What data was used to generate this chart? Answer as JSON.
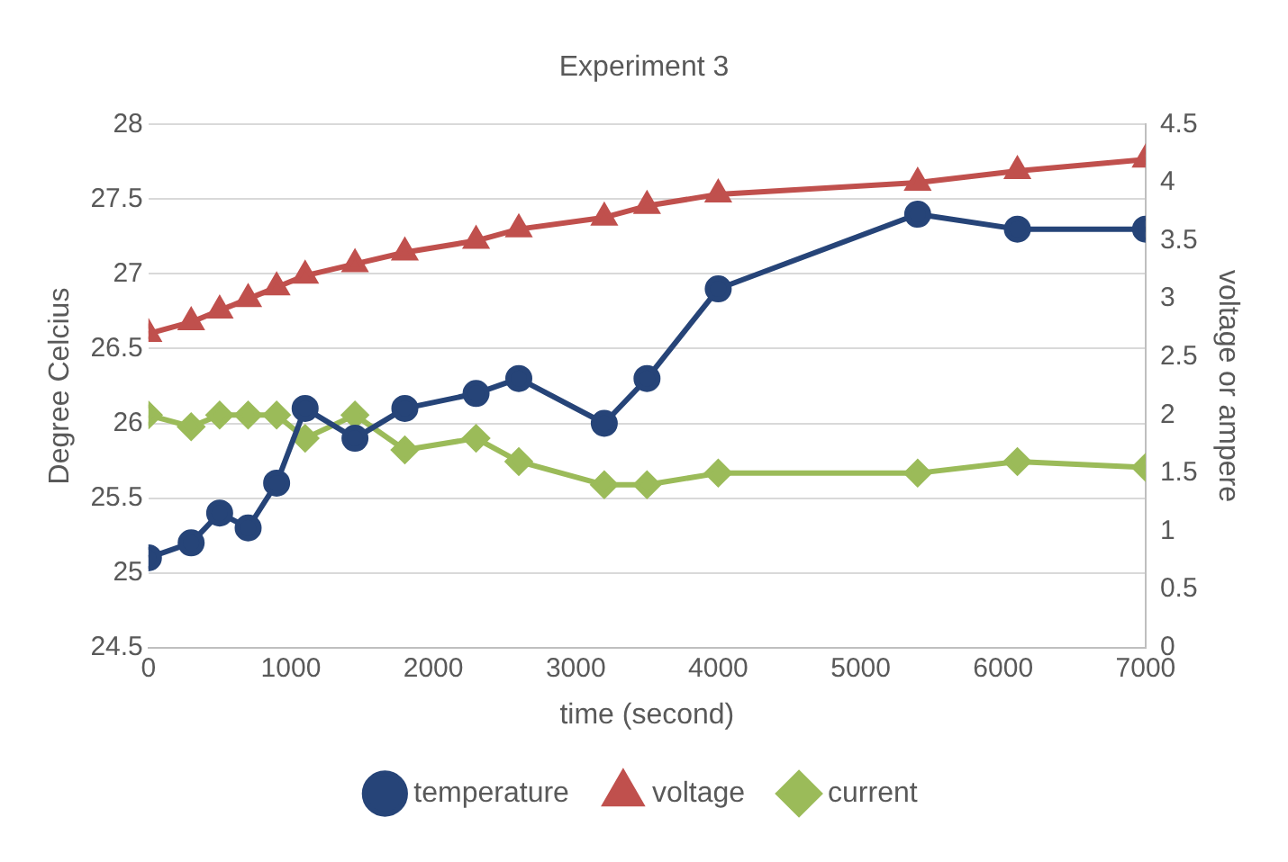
{
  "chart_data": {
    "type": "line",
    "title": "Experiment 3",
    "xlabel": "time (second)",
    "ylabel": "Degree Celcius",
    "y2label": "voltage or ampere",
    "x": [
      0,
      300,
      500,
      700,
      900,
      1100,
      1450,
      1800,
      2300,
      2600,
      3200,
      3500,
      4000,
      5400,
      6100,
      7000
    ],
    "series": [
      {
        "name": "temperature",
        "color": "#264478",
        "marker": "circle",
        "values": [
          25.1,
          25.2,
          25.4,
          25.3,
          25.6,
          26.1,
          25.9,
          26.1,
          26.2,
          26.3,
          26.0,
          26.3,
          26.9,
          27.4,
          27.3,
          27.3
        ]
      },
      {
        "name": "voltage",
        "color": "#c0504d",
        "marker": "triangle",
        "axis": "y2",
        "values": [
          2.7,
          2.8,
          2.9,
          3.0,
          3.1,
          3.2,
          3.3,
          3.4,
          3.5,
          3.6,
          3.7,
          3.8,
          3.9,
          4.0,
          4.1,
          4.2
        ]
      },
      {
        "name": "current",
        "color": "#9bbb59",
        "marker": "diamond",
        "axis": "y2",
        "values": [
          2.0,
          1.9,
          2.0,
          2.0,
          2.0,
          1.8,
          2.0,
          1.7,
          1.8,
          1.6,
          1.4,
          1.4,
          1.5,
          1.5,
          1.6,
          1.55
        ]
      }
    ],
    "xlim": [
      0,
      7000
    ],
    "xticks": [
      0,
      1000,
      2000,
      3000,
      4000,
      5000,
      6000,
      7000
    ],
    "ylim": [
      24.5,
      28
    ],
    "yticks": [
      24.5,
      25,
      25.5,
      26,
      26.5,
      27,
      27.5,
      28
    ],
    "y2lim": [
      0,
      4.5
    ],
    "y2ticks": [
      0,
      0.5,
      1,
      1.5,
      2,
      2.5,
      3,
      3.5,
      4,
      4.5
    ],
    "grid": "y",
    "legend": "bottom"
  }
}
